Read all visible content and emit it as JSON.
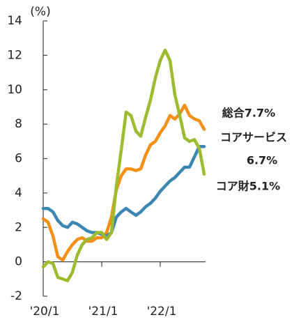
{
  "chart_data": {
    "type": "line",
    "y_unit_label": "(%)",
    "categories": [
      "'20/1",
      null,
      null,
      null,
      null,
      null,
      null,
      null,
      null,
      null,
      null,
      null,
      "'21/1",
      null,
      null,
      null,
      null,
      null,
      null,
      null,
      null,
      null,
      null,
      null,
      "'22/1",
      null,
      null,
      null,
      null,
      null,
      null,
      null,
      null,
      null
    ],
    "ylim": [
      -2,
      14
    ],
    "yticks": [
      -2,
      0,
      2,
      4,
      6,
      8,
      10,
      12,
      14
    ],
    "series": [
      {
        "label_lines": [
          "総合7.7%"
        ],
        "color": "#f39015",
        "values": [
          2.5,
          2.3,
          1.5,
          0.3,
          0.1,
          0.6,
          1.0,
          1.3,
          1.4,
          1.2,
          1.2,
          1.4,
          1.4,
          1.7,
          2.6,
          4.2,
          5.0,
          5.4,
          5.4,
          5.3,
          5.4,
          6.2,
          6.8,
          7.0,
          7.5,
          7.9,
          8.5,
          8.3,
          8.6,
          9.1,
          8.5,
          8.3,
          8.2,
          7.7
        ]
      },
      {
        "label_lines": [
          "コアサービス",
          "6.7%"
        ],
        "color": "#3b87b4",
        "values": [
          3.1,
          3.1,
          2.9,
          2.4,
          2.1,
          2.0,
          2.3,
          2.2,
          2.0,
          1.8,
          1.7,
          1.7,
          1.6,
          1.5,
          1.7,
          2.6,
          2.9,
          3.1,
          2.9,
          2.7,
          2.9,
          3.2,
          3.4,
          3.7,
          4.1,
          4.4,
          4.7,
          4.9,
          5.2,
          5.5,
          5.5,
          6.1,
          6.7,
          6.7
        ]
      },
      {
        "label_lines": [
          "コア財5.1%"
        ],
        "color": "#9dbb2e",
        "values": [
          -0.3,
          0.0,
          -0.1,
          -0.9,
          -1.0,
          -1.1,
          -0.6,
          0.4,
          1.0,
          1.3,
          1.4,
          1.7,
          1.7,
          1.3,
          1.7,
          4.4,
          6.5,
          8.7,
          8.5,
          7.6,
          7.3,
          8.4,
          9.4,
          10.7,
          11.7,
          12.3,
          11.7,
          9.7,
          8.5,
          7.2,
          7.0,
          7.1,
          6.6,
          5.1
        ]
      }
    ]
  }
}
